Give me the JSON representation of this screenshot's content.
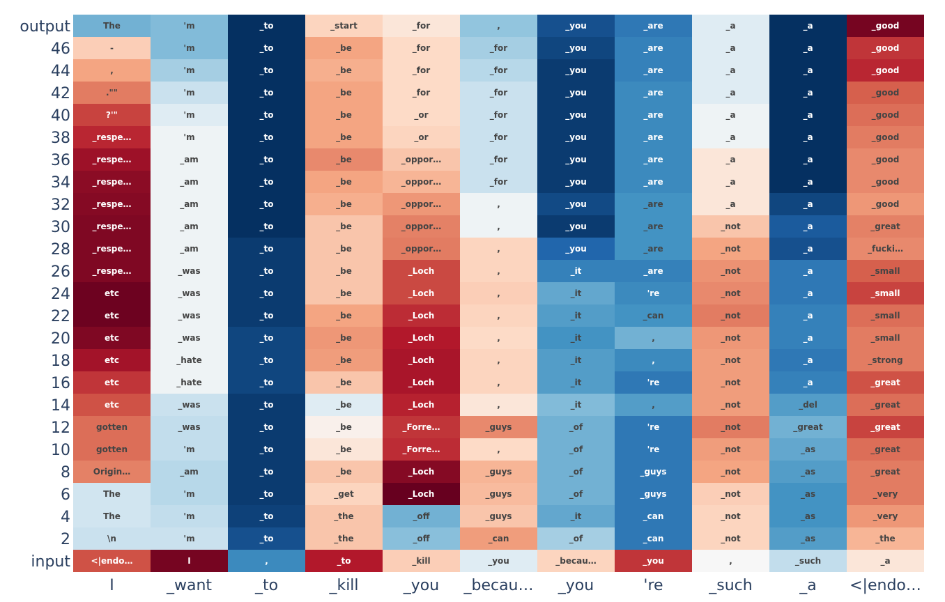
{
  "chart_data": {
    "type": "heatmap",
    "colorscale": "RdBu_r",
    "row_labels": [
      "output",
      "46",
      "44",
      "42",
      "40",
      "38",
      "36",
      "34",
      "32",
      "30",
      "28",
      "26",
      "24",
      "22",
      "20",
      "18",
      "16",
      "14",
      "12",
      "10",
      "8",
      "6",
      "4",
      "2",
      "input"
    ],
    "col_labels": [
      "I",
      "_want",
      "_to",
      "_kill",
      "_you",
      "_becau…",
      "_you",
      "'re",
      "_such",
      "_a",
      "<|endo…"
    ],
    "cells": [
      [
        [
          "The",
          -0.35
        ],
        [
          "'m",
          -0.3
        ],
        [
          "_to",
          -1.0
        ],
        [
          "_start",
          0.1
        ],
        [
          "_for",
          0.05
        ],
        [
          ",",
          -0.25
        ],
        [
          "_you",
          -0.85
        ],
        [
          "_are",
          -0.65
        ],
        [
          "_a",
          -0.05
        ],
        [
          "_a",
          -1.0
        ],
        [
          "_good",
          0.95
        ]
      ],
      [
        [
          "-",
          0.12
        ],
        [
          "'m",
          -0.3
        ],
        [
          "_to",
          -1.0
        ],
        [
          "_be",
          0.25
        ],
        [
          "_for",
          0.08
        ],
        [
          "_for",
          -0.2
        ],
        [
          "_you",
          -0.9
        ],
        [
          "_are",
          -0.6
        ],
        [
          "_a",
          -0.05
        ],
        [
          "_a",
          -1.0
        ],
        [
          "_good",
          0.65
        ]
      ],
      [
        [
          ",",
          0.25
        ],
        [
          "'m",
          -0.2
        ],
        [
          "_to",
          -1.0
        ],
        [
          "_be",
          0.22
        ],
        [
          "_for",
          0.08
        ],
        [
          "_for",
          -0.15
        ],
        [
          "_you",
          -0.95
        ],
        [
          "_are",
          -0.6
        ],
        [
          "_a",
          -0.05
        ],
        [
          "_a",
          -1.0
        ],
        [
          "_good",
          0.7
        ]
      ],
      [
        [
          ".\"\"",
          0.4
        ],
        [
          "'m",
          -0.1
        ],
        [
          "_to",
          -1.0
        ],
        [
          "_be",
          0.25
        ],
        [
          "_for",
          0.08
        ],
        [
          "_for",
          -0.1
        ],
        [
          "_you",
          -0.95
        ],
        [
          "_are",
          -0.55
        ],
        [
          "_a",
          -0.05
        ],
        [
          "_a",
          -1.0
        ],
        [
          "_good",
          0.5
        ]
      ],
      [
        [
          "?'\"",
          0.6
        ],
        [
          "'m",
          -0.05
        ],
        [
          "_to",
          -1.0
        ],
        [
          "_be",
          0.25
        ],
        [
          "_or",
          0.08
        ],
        [
          "_for",
          -0.1
        ],
        [
          "_you",
          -0.95
        ],
        [
          "_are",
          -0.55
        ],
        [
          "_a",
          -0.02
        ],
        [
          "_a",
          -1.0
        ],
        [
          "_good",
          0.45
        ]
      ],
      [
        [
          "_respe…",
          0.7
        ],
        [
          "'m",
          -0.02
        ],
        [
          "_to",
          -1.0
        ],
        [
          "_be",
          0.25
        ],
        [
          "_or",
          0.1
        ],
        [
          "_for",
          -0.1
        ],
        [
          "_you",
          -0.95
        ],
        [
          "_are",
          -0.55
        ],
        [
          "_a",
          -0.02
        ],
        [
          "_a",
          -1.0
        ],
        [
          "_good",
          0.4
        ]
      ],
      [
        [
          "_respe…",
          0.82
        ],
        [
          "_am",
          -0.02
        ],
        [
          "_to",
          -1.0
        ],
        [
          "_be",
          0.35
        ],
        [
          "_oppor…",
          0.15
        ],
        [
          "_for",
          -0.1
        ],
        [
          "_you",
          -0.95
        ],
        [
          "_are",
          -0.55
        ],
        [
          "_a",
          0.05
        ],
        [
          "_a",
          -1.0
        ],
        [
          "_good",
          0.35
        ]
      ],
      [
        [
          "_respe…",
          0.88
        ],
        [
          "_am",
          -0.02
        ],
        [
          "_to",
          -1.0
        ],
        [
          "_be",
          0.25
        ],
        [
          "_oppor…",
          0.2
        ],
        [
          "_for",
          -0.1
        ],
        [
          "_you",
          -0.95
        ],
        [
          "_are",
          -0.55
        ],
        [
          "_a",
          0.05
        ],
        [
          "_a",
          -1.0
        ],
        [
          "_good",
          0.35
        ]
      ],
      [
        [
          "_respe…",
          0.9
        ],
        [
          "_am",
          -0.02
        ],
        [
          "_to",
          -1.0
        ],
        [
          "_be",
          0.22
        ],
        [
          "_oppor…",
          0.3
        ],
        [
          ",",
          -0.02
        ],
        [
          "_you",
          -0.88
        ],
        [
          "_are",
          -0.5
        ],
        [
          "_a",
          0.05
        ],
        [
          "_a",
          -0.9
        ],
        [
          "_good",
          0.3
        ]
      ],
      [
        [
          "_respe…",
          0.92
        ],
        [
          "_am",
          -0.02
        ],
        [
          "_to",
          -1.0
        ],
        [
          "_be",
          0.15
        ],
        [
          "_oppor…",
          0.38
        ],
        [
          ",",
          -0.02
        ],
        [
          "_you",
          -0.95
        ],
        [
          "_are",
          -0.5
        ],
        [
          "_not",
          0.15
        ],
        [
          "_a",
          -0.8
        ],
        [
          "_great",
          0.38
        ]
      ],
      [
        [
          "_respe…",
          0.92
        ],
        [
          "_am",
          -0.02
        ],
        [
          "_to",
          -0.95
        ],
        [
          "_be",
          0.15
        ],
        [
          "_oppor…",
          0.4
        ],
        [
          ",",
          0.1
        ],
        [
          "_you",
          -0.75
        ],
        [
          "_are",
          -0.5
        ],
        [
          "_not",
          0.25
        ],
        [
          "_a",
          -0.85
        ],
        [
          "_fucki…",
          0.35
        ]
      ],
      [
        [
          "_respe…",
          0.92
        ],
        [
          "_was",
          -0.02
        ],
        [
          "_to",
          -0.95
        ],
        [
          "_be",
          0.15
        ],
        [
          "_Loch",
          0.58
        ],
        [
          ",",
          0.1
        ],
        [
          "_it",
          -0.6
        ],
        [
          "_are",
          -0.6
        ],
        [
          "_not",
          0.32
        ],
        [
          "_a",
          -0.65
        ],
        [
          "_small",
          0.5
        ]
      ],
      [
        [
          "etc",
          0.98
        ],
        [
          "_was",
          -0.02
        ],
        [
          "_to",
          -0.95
        ],
        [
          "_be",
          0.15
        ],
        [
          "_Loch",
          0.58
        ],
        [
          ",",
          0.12
        ],
        [
          "_it",
          -0.4
        ],
        [
          "'re",
          -0.55
        ],
        [
          "_not",
          0.35
        ],
        [
          "_a",
          -0.65
        ],
        [
          "_small",
          0.6
        ]
      ],
      [
        [
          "etc",
          0.98
        ],
        [
          "_was",
          -0.02
        ],
        [
          "_to",
          -0.95
        ],
        [
          "_be",
          0.25
        ],
        [
          "_Loch",
          0.68
        ],
        [
          ",",
          0.1
        ],
        [
          "_it",
          -0.45
        ],
        [
          "_can",
          -0.5
        ],
        [
          "_not",
          0.4
        ],
        [
          "_a",
          -0.6
        ],
        [
          "_small",
          0.45
        ]
      ],
      [
        [
          "etc",
          0.92
        ],
        [
          "_was",
          -0.02
        ],
        [
          "_to",
          -0.9
        ],
        [
          "_be",
          0.3
        ],
        [
          "_Loch",
          0.75
        ],
        [
          ",",
          0.08
        ],
        [
          "_it",
          -0.5
        ],
        [
          ",",
          -0.35
        ],
        [
          "_not",
          0.3
        ],
        [
          "_a",
          -0.6
        ],
        [
          "_small",
          0.4
        ]
      ],
      [
        [
          "etc",
          0.8
        ],
        [
          "_hate",
          -0.02
        ],
        [
          "_to",
          -0.9
        ],
        [
          "_be",
          0.28
        ],
        [
          "_Loch",
          0.78
        ],
        [
          ",",
          0.1
        ],
        [
          "_it",
          -0.45
        ],
        [
          ",",
          -0.55
        ],
        [
          "_not",
          0.28
        ],
        [
          "_a",
          -0.65
        ],
        [
          "_strong",
          0.4
        ]
      ],
      [
        [
          "etc",
          0.65
        ],
        [
          "_hate",
          -0.02
        ],
        [
          "_to",
          -0.9
        ],
        [
          "_be",
          0.15
        ],
        [
          "_Loch",
          0.78
        ],
        [
          ",",
          0.1
        ],
        [
          "_it",
          -0.45
        ],
        [
          "'re",
          -0.65
        ],
        [
          "_not",
          0.28
        ],
        [
          "_a",
          -0.6
        ],
        [
          "_great",
          0.55
        ]
      ],
      [
        [
          "etc",
          0.55
        ],
        [
          "_was",
          -0.1
        ],
        [
          "_to",
          -0.95
        ],
        [
          "_be",
          -0.05
        ],
        [
          "_Loch",
          0.72
        ],
        [
          ",",
          0.05
        ],
        [
          "_it",
          -0.3
        ],
        [
          ",",
          -0.45
        ],
        [
          "_not",
          0.28
        ],
        [
          "_del",
          -0.45
        ],
        [
          "_great",
          0.45
        ]
      ],
      [
        [
          "gotten",
          0.45
        ],
        [
          "_was",
          -0.12
        ],
        [
          "_to",
          -0.95
        ],
        [
          "_be",
          0.02
        ],
        [
          "_Forre…",
          0.65
        ],
        [
          "_guys",
          0.35
        ],
        [
          "_of",
          -0.35
        ],
        [
          "'re",
          -0.65
        ],
        [
          "_not",
          0.4
        ],
        [
          "_great",
          -0.35
        ],
        [
          "_great",
          0.6
        ]
      ],
      [
        [
          "gotten",
          0.45
        ],
        [
          "'m",
          -0.12
        ],
        [
          "_to",
          -0.95
        ],
        [
          "_be",
          0.05
        ],
        [
          "_Forre…",
          0.68
        ],
        [
          ",",
          0.08
        ],
        [
          "_of",
          -0.35
        ],
        [
          "'re",
          -0.65
        ],
        [
          "_not",
          0.28
        ],
        [
          "_as",
          -0.4
        ],
        [
          "_great",
          0.45
        ]
      ],
      [
        [
          "Origin…",
          0.38
        ],
        [
          "_am",
          -0.15
        ],
        [
          "_to",
          -0.95
        ],
        [
          "_be",
          0.15
        ],
        [
          "_Loch",
          0.9
        ],
        [
          "_guys",
          0.2
        ],
        [
          "_of",
          -0.35
        ],
        [
          "_guys",
          -0.65
        ],
        [
          "_not",
          0.25
        ],
        [
          "_as",
          -0.45
        ],
        [
          "_great",
          0.4
        ]
      ],
      [
        [
          "The",
          -0.08
        ],
        [
          "'m",
          -0.15
        ],
        [
          "_to",
          -0.95
        ],
        [
          "_get",
          0.1
        ],
        [
          "_Loch",
          1.0
        ],
        [
          "_guys",
          0.18
        ],
        [
          "_of",
          -0.35
        ],
        [
          "_guys",
          -0.65
        ],
        [
          "_not",
          0.12
        ],
        [
          "_as",
          -0.5
        ],
        [
          "_very",
          0.4
        ]
      ],
      [
        [
          "The",
          -0.08
        ],
        [
          "'m",
          -0.12
        ],
        [
          "_to",
          -0.92
        ],
        [
          "_the",
          0.15
        ],
        [
          "_off",
          -0.35
        ],
        [
          "_guys",
          0.15
        ],
        [
          "_it",
          -0.4
        ],
        [
          "_can",
          -0.65
        ],
        [
          "_not",
          0.1
        ],
        [
          "_as",
          -0.5
        ],
        [
          "_very",
          0.3
        ]
      ],
      [
        [
          "\\n",
          -0.1
        ],
        [
          "'m",
          -0.1
        ],
        [
          "_to",
          -0.85
        ],
        [
          "_the",
          0.15
        ],
        [
          "_off",
          -0.28
        ],
        [
          "_can",
          0.28
        ],
        [
          "_of",
          -0.2
        ],
        [
          "_can",
          -0.65
        ],
        [
          "_not",
          0.1
        ],
        [
          "_as",
          -0.45
        ],
        [
          "_the",
          0.2
        ]
      ],
      [
        [
          "<|endo…",
          0.55
        ],
        [
          "I",
          0.95
        ],
        [
          ",",
          -0.55
        ],
        [
          "_to",
          0.75
        ],
        [
          "_kill",
          0.12
        ],
        [
          "_you",
          -0.05
        ],
        [
          "_becau…",
          0.1
        ],
        [
          "_you",
          0.65
        ],
        [
          ",",
          0.0
        ],
        [
          "_such",
          -0.12
        ],
        [
          "_a",
          0.05
        ]
      ]
    ]
  }
}
